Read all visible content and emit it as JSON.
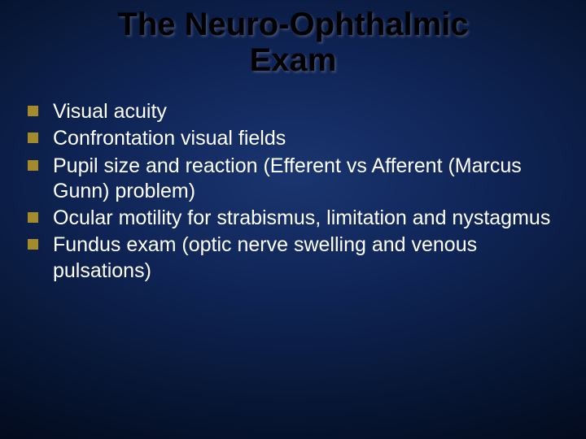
{
  "slide": {
    "title": "The Neuro-Ophthalmic Exam",
    "title_fontsize": 40,
    "title_color": "#000000",
    "body_fontsize": 25,
    "body_color": "#ffffff",
    "bullet_color": "#a38a2a",
    "bullet_size": 13,
    "background_gradient": {
      "type": "radial",
      "center": "#1a3570",
      "mid": "#0f2455",
      "outer": "#081838",
      "edge": "#030c1f"
    },
    "items": [
      "Visual acuity",
      "Confrontation visual fields",
      "Pupil size and reaction (Efferent vs Afferent (Marcus Gunn) problem)",
      "Ocular motility for strabismus, limitation and nystagmus",
      "Fundus exam (optic nerve swelling and venous pulsations)"
    ]
  }
}
